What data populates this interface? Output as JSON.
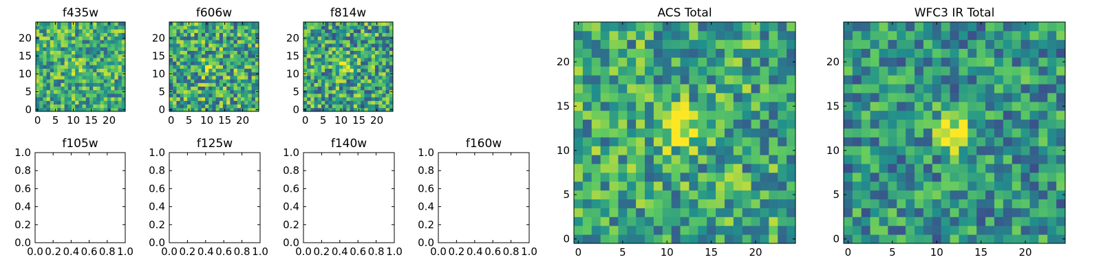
{
  "colormap": "viridis",
  "colors": {
    "viridis": [
      "#440154",
      "#3b528b",
      "#21918c",
      "#5ec962",
      "#fde725"
    ],
    "frame": "#000000",
    "background": "#ffffff"
  },
  "chart_data": [
    {
      "id": "f435w",
      "type": "heatmap",
      "title": "f435w",
      "grid_size": 25,
      "xlim": [
        -0.5,
        24.5
      ],
      "ylim": [
        -0.5,
        24.5
      ],
      "xticks": [
        0,
        5,
        10,
        15,
        20
      ],
      "yticks": [
        0,
        5,
        10,
        15,
        20
      ],
      "noise_level": 0.62,
      "noise_amp": 0.3,
      "source_peak": 0.15,
      "source_center": [
        11,
        12
      ],
      "seed": 11
    },
    {
      "id": "f606w",
      "type": "heatmap",
      "title": "f606w",
      "grid_size": 25,
      "xlim": [
        -0.5,
        24.5
      ],
      "ylim": [
        -0.5,
        24.5
      ],
      "xticks": [
        0,
        5,
        10,
        15,
        20
      ],
      "yticks": [
        0,
        5,
        10,
        15,
        20
      ],
      "noise_level": 0.6,
      "noise_amp": 0.34,
      "source_peak": 0.3,
      "source_center": [
        11,
        12
      ],
      "seed": 23
    },
    {
      "id": "f814w",
      "type": "heatmap",
      "title": "f814w",
      "grid_size": 25,
      "xlim": [
        -0.5,
        24.5
      ],
      "ylim": [
        -0.5,
        24.5
      ],
      "xticks": [
        0,
        5,
        10,
        15,
        20
      ],
      "yticks": [
        0,
        5,
        10,
        15,
        20
      ],
      "noise_level": 0.58,
      "noise_amp": 0.34,
      "source_peak": 0.35,
      "source_center": [
        11,
        12
      ],
      "seed": 37
    },
    {
      "id": "f105w",
      "type": "empty",
      "title": "f105w",
      "xlim": [
        0.0,
        1.0
      ],
      "ylim": [
        0.0,
        1.0
      ],
      "xticks": [
        "0.0",
        "0.2",
        "0.4",
        "0.6",
        "0.8",
        "1.0"
      ],
      "yticks": [
        "0.0",
        "0.2",
        "0.4",
        "0.6",
        "0.8",
        "1.0"
      ]
    },
    {
      "id": "f125w",
      "type": "empty",
      "title": "f125w",
      "xlim": [
        0.0,
        1.0
      ],
      "ylim": [
        0.0,
        1.0
      ],
      "xticks": [
        "0.0",
        "0.2",
        "0.4",
        "0.6",
        "0.8",
        "1.0"
      ],
      "yticks": [
        "0.0",
        "0.2",
        "0.4",
        "0.6",
        "0.8",
        "1.0"
      ]
    },
    {
      "id": "f140w",
      "type": "empty",
      "title": "f140w",
      "xlim": [
        0.0,
        1.0
      ],
      "ylim": [
        0.0,
        1.0
      ],
      "xticks": [
        "0.0",
        "0.2",
        "0.4",
        "0.6",
        "0.8",
        "1.0"
      ],
      "yticks": [
        "0.0",
        "0.2",
        "0.4",
        "0.6",
        "0.8",
        "1.0"
      ]
    },
    {
      "id": "f160w",
      "type": "empty",
      "title": "f160w",
      "xlim": [
        0.0,
        1.0
      ],
      "ylim": [
        0.0,
        1.0
      ],
      "xticks": [
        "0.0",
        "0.2",
        "0.4",
        "0.6",
        "0.8",
        "1.0"
      ],
      "yticks": [
        "0.0",
        "0.2",
        "0.4",
        "0.6",
        "0.8",
        "1.0"
      ]
    },
    {
      "id": "acs-total",
      "type": "heatmap",
      "title": "ACS Total",
      "grid_size": 25,
      "xlim": [
        -0.5,
        24.5
      ],
      "ylim": [
        -0.5,
        24.5
      ],
      "xticks": [
        0,
        5,
        10,
        15,
        20
      ],
      "yticks": [
        0,
        5,
        10,
        15,
        20
      ],
      "noise_level": 0.6,
      "noise_amp": 0.3,
      "source_peak": 0.45,
      "source_center": [
        11.5,
        12.5
      ],
      "seed": 53
    },
    {
      "id": "wfc3-ir-total",
      "type": "heatmap",
      "title": "WFC3 IR Total",
      "grid_size": 25,
      "xlim": [
        -0.5,
        24.5
      ],
      "ylim": [
        -0.5,
        24.5
      ],
      "xticks": [
        0,
        5,
        10,
        15,
        20
      ],
      "yticks": [
        0,
        5,
        10,
        15,
        20
      ],
      "noise_level": 0.52,
      "noise_amp": 0.28,
      "source_peak": 0.5,
      "source_center": [
        12,
        12
      ],
      "seed": 71
    }
  ]
}
